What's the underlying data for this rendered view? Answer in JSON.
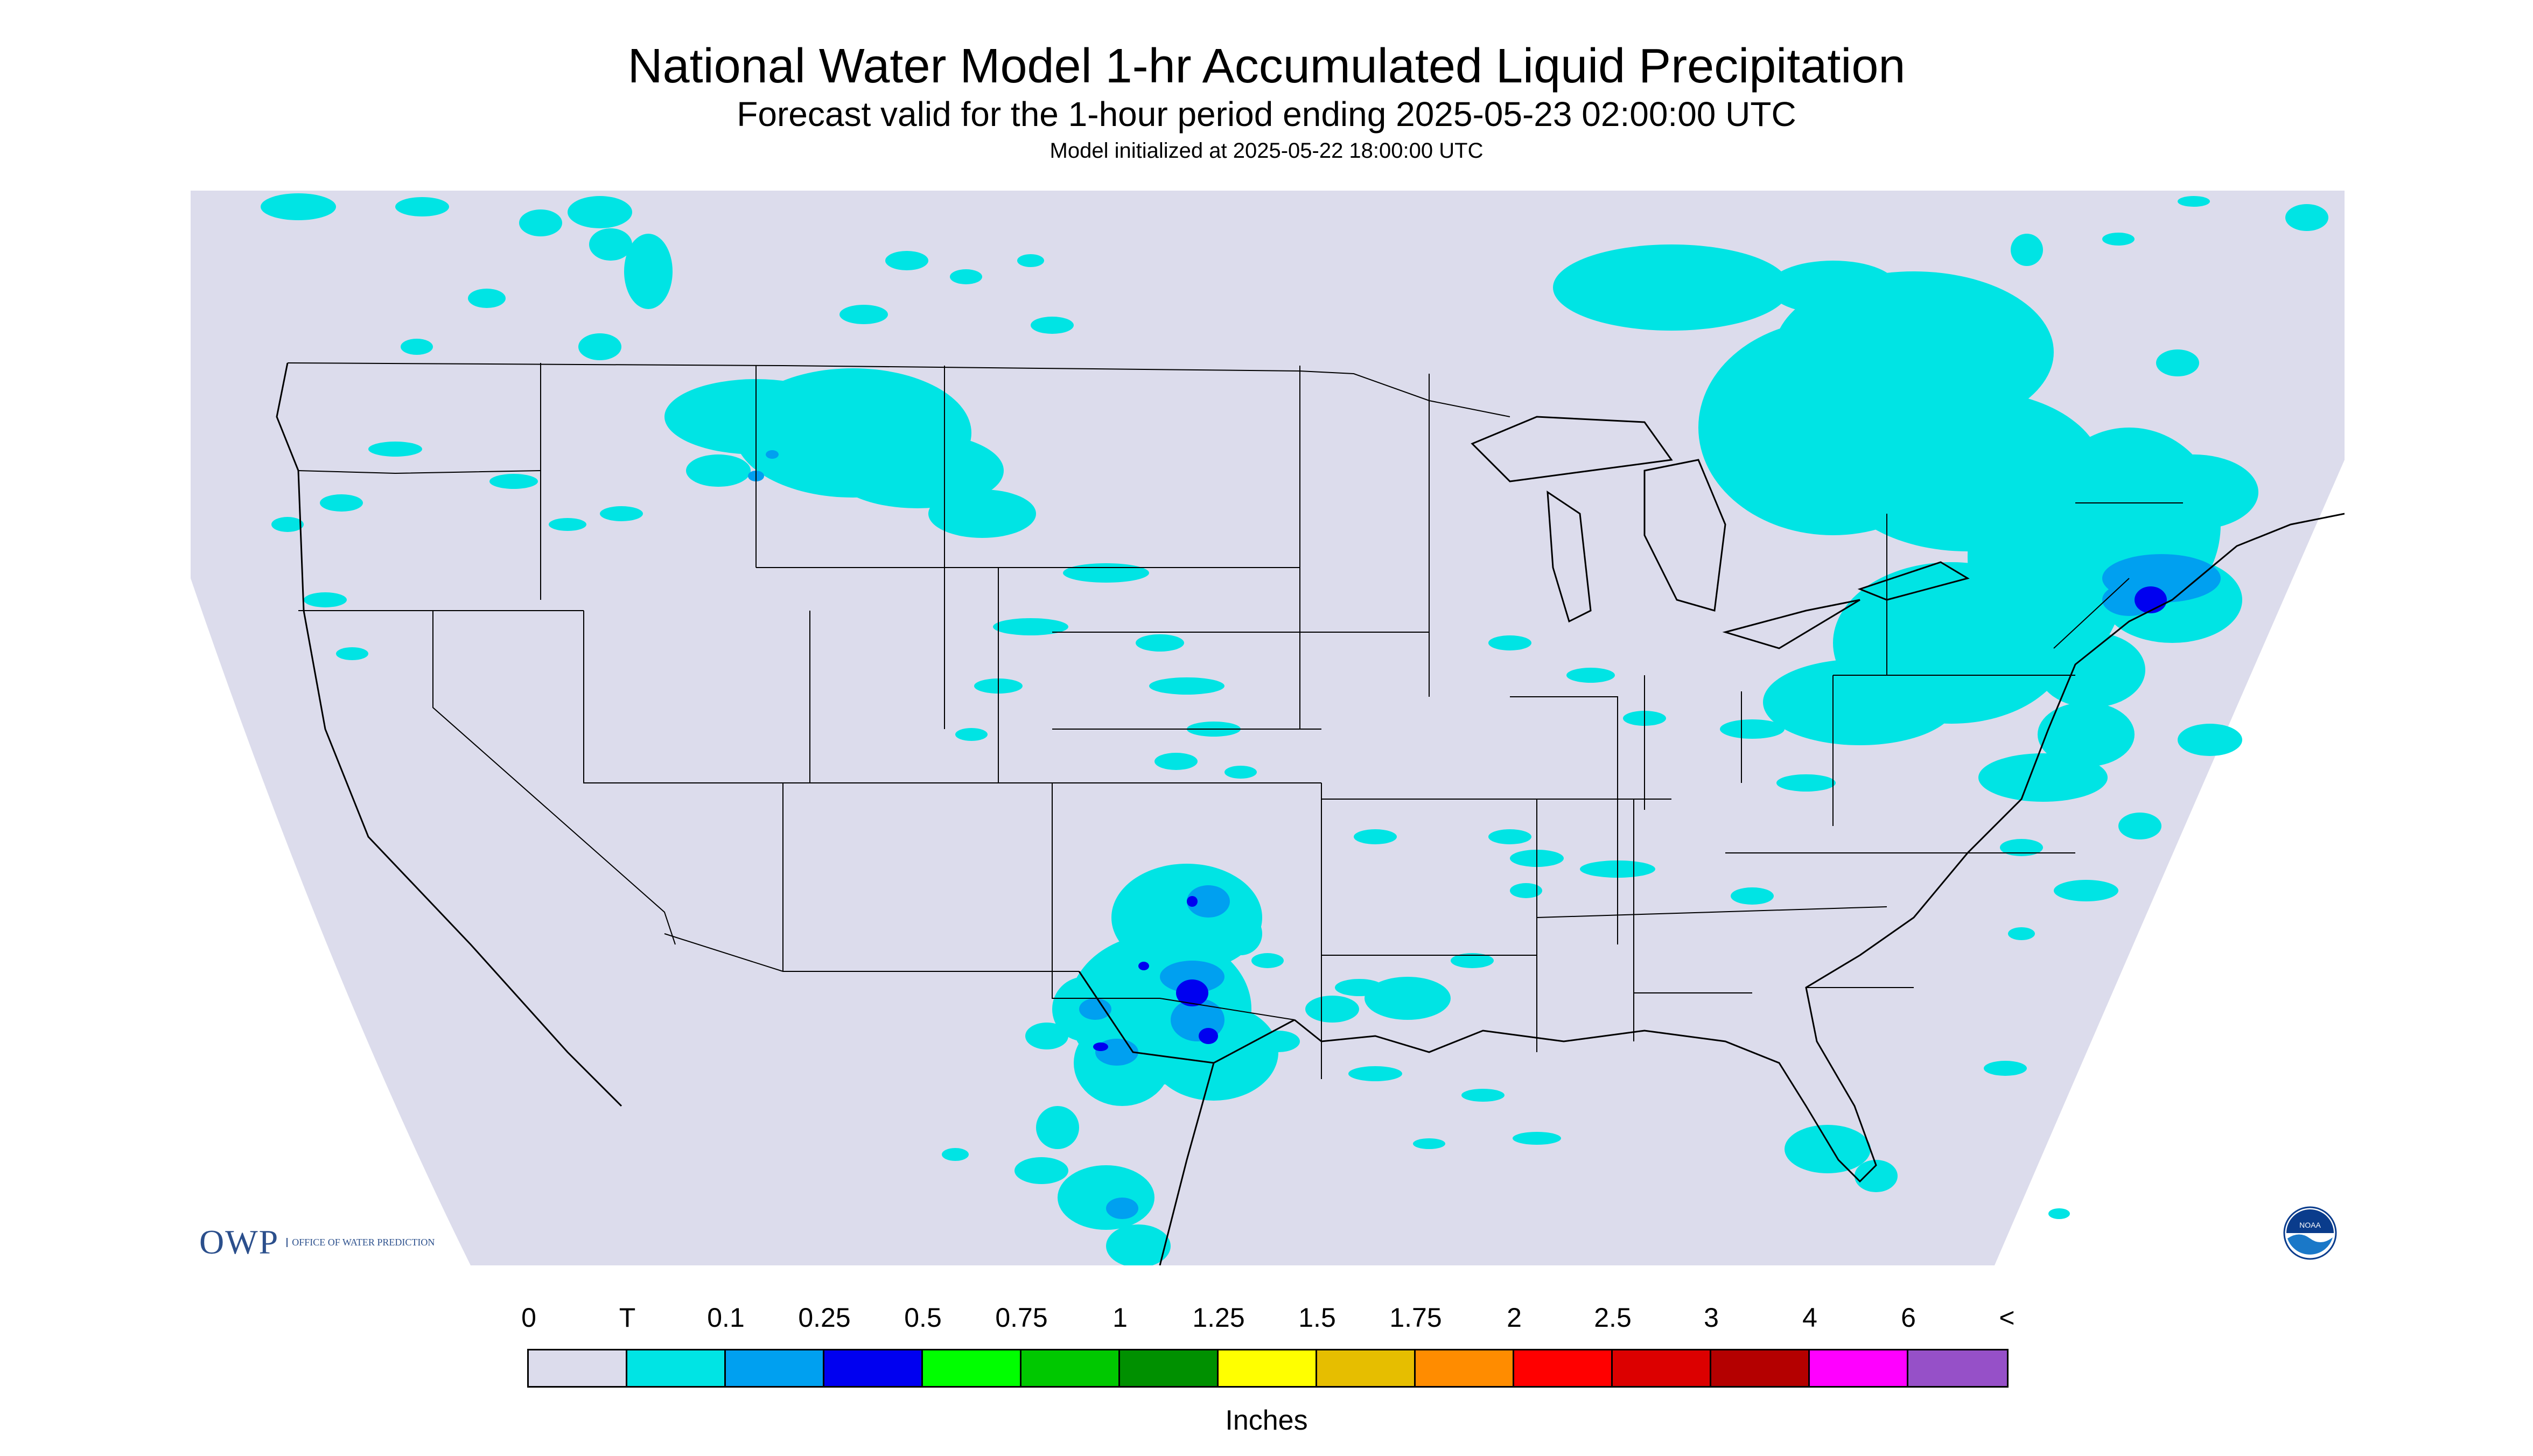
{
  "header": {
    "title": "National Water Model 1-hr Accumulated Liquid Precipitation",
    "subtitle": "Forecast valid for the 1-hour period ending 2025-05-23 02:00:00 UTC",
    "init_line": "Model initialized at 2025-05-22 18:00:00 UTC"
  },
  "map": {
    "region": "CONUS",
    "no_data_color": "#ffffff",
    "background_color": "#dcdcec",
    "border_color": "#000000",
    "precip_areas": [
      {
        "region": "Montana / Idaho",
        "category": "T"
      },
      {
        "region": "Great Lakes / Ontario",
        "category": "T"
      },
      {
        "region": "Texas / Oklahoma",
        "category": "0.25"
      },
      {
        "region": "New England",
        "category": "0.25"
      },
      {
        "region": "Florida",
        "category": "T"
      },
      {
        "region": "Mexico",
        "category": "0.1"
      }
    ]
  },
  "legend": {
    "labels": [
      "0",
      "T",
      "0.1",
      "0.25",
      "0.5",
      "0.75",
      "1",
      "1.25",
      "1.5",
      "1.75",
      "2",
      "2.5",
      "3",
      "4",
      "6",
      "<"
    ],
    "colors": [
      "#dcdcec",
      "#00e4e4",
      "#00a0f0",
      "#0000f0",
      "#00ff00",
      "#00c800",
      "#009000",
      "#ffff00",
      "#e6be00",
      "#ff8c00",
      "#ff0000",
      "#dc0000",
      "#b40000",
      "#ff00ff",
      "#9650c8"
    ],
    "units": "Inches"
  },
  "logos": {
    "owp_mark": "OWP",
    "owp_text": "OFFICE OF WATER PREDICTION",
    "noaa_text": "NOAA",
    "noaa_icon": "noaa-logo-icon"
  }
}
